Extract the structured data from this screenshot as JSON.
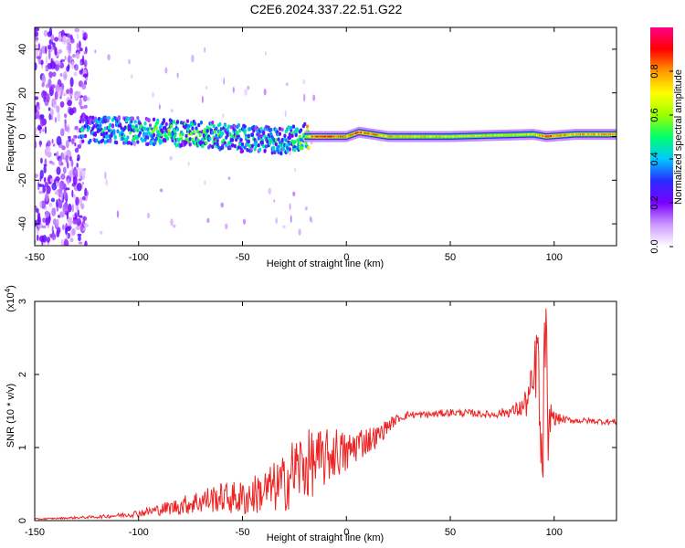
{
  "title": "C2E6.2024.337.22.51.G22",
  "chart_data": [
    {
      "type": "heatmap",
      "xlabel": "Height of straight line (km)",
      "ylabel": "Frequency (Hz)",
      "xlim": [
        -150,
        130
      ],
      "ylim": [
        -50,
        50
      ],
      "x_ticks": [
        -150,
        -100,
        -50,
        0,
        50,
        100
      ],
      "y_ticks": [
        -40,
        -20,
        0,
        20,
        40
      ],
      "colorbar": {
        "label": "Normalized spectral amplitude",
        "range": [
          0.0,
          1.0
        ],
        "ticks": [
          "0.0",
          "0.2",
          "0.4",
          "0.6",
          "0.8"
        ],
        "tick_values": [
          0.0,
          0.2,
          0.4,
          0.6,
          0.8
        ],
        "colors": [
          "#ffffff",
          "#cc99ff",
          "#7a00ff",
          "#2a2aff",
          "#00c8ff",
          "#00ff6a",
          "#9bff00",
          "#ffff00",
          "#ff9900",
          "#ff0000",
          "#ff0088"
        ]
      },
      "ridge": [
        {
          "x": -125,
          "y": 3,
          "amp": 0.35
        },
        {
          "x": -110,
          "y": 3,
          "amp": 0.4
        },
        {
          "x": -90,
          "y": 2,
          "amp": 0.45
        },
        {
          "x": -70,
          "y": 1,
          "amp": 0.45
        },
        {
          "x": -50,
          "y": -1,
          "amp": 0.4
        },
        {
          "x": -30,
          "y": -2,
          "amp": 0.4
        },
        {
          "x": -22,
          "y": 0,
          "amp": 0.5
        },
        {
          "x": -15,
          "y": 0,
          "amp": 0.9
        },
        {
          "x": 0,
          "y": 0,
          "amp": 0.8
        },
        {
          "x": 6,
          "y": 2,
          "amp": 0.85
        },
        {
          "x": 20,
          "y": 0,
          "amp": 0.75
        },
        {
          "x": 50,
          "y": 0,
          "amp": 0.7
        },
        {
          "x": 90,
          "y": 1,
          "amp": 0.7
        },
        {
          "x": 96,
          "y": 0,
          "amp": 0.85
        },
        {
          "x": 110,
          "y": 1,
          "amp": 0.75
        },
        {
          "x": 130,
          "y": 1,
          "amp": 0.8
        }
      ]
    },
    {
      "type": "line",
      "xlabel": "Height of straight line (km)",
      "ylabel": "SNR (10 * v/v)",
      "y_multiplier": "(x10",
      "y_multiplier_exp": "4",
      "y_multiplier_close": ")",
      "xlim": [
        -150,
        130
      ],
      "ylim": [
        0,
        3
      ],
      "x_ticks": [
        -150,
        -100,
        -50,
        0,
        50,
        100
      ],
      "y_ticks": [
        0,
        1,
        2,
        3
      ],
      "series": [
        {
          "color": "#ee2222",
          "x": [
            -150,
            -140,
            -130,
            -120,
            -110,
            -100,
            -90,
            -80,
            -70,
            -60,
            -50,
            -40,
            -30,
            -25,
            -20,
            -15,
            -10,
            -5,
            0,
            5,
            10,
            15,
            20,
            25,
            30,
            40,
            50,
            60,
            70,
            80,
            85,
            90,
            92,
            94,
            95,
            96,
            97,
            98,
            100,
            105,
            110,
            120,
            130
          ],
          "y": [
            0.02,
            0.03,
            0.04,
            0.05,
            0.07,
            0.1,
            0.15,
            0.2,
            0.27,
            0.32,
            0.3,
            0.4,
            0.5,
            0.7,
            0.75,
            0.8,
            0.85,
            0.95,
            0.9,
            1.05,
            1.1,
            1.15,
            1.3,
            1.4,
            1.45,
            1.45,
            1.48,
            1.47,
            1.45,
            1.5,
            1.55,
            1.8,
            2.4,
            0.5,
            1.6,
            3.0,
            0.4,
            1.5,
            1.4,
            1.38,
            1.37,
            1.36,
            1.35
          ],
          "noise": [
            0.01,
            0.01,
            0.015,
            0.02,
            0.03,
            0.05,
            0.08,
            0.12,
            0.18,
            0.2,
            0.25,
            0.3,
            0.4,
            0.5,
            0.5,
            0.45,
            0.4,
            0.35,
            0.3,
            0.25,
            0.2,
            0.15,
            0.1,
            0.06,
            0.05,
            0.05,
            0.05,
            0.05,
            0.05,
            0.08,
            0.15,
            0.4,
            0.6,
            0.7,
            0.8,
            0.8,
            0.6,
            0.3,
            0.1,
            0.05,
            0.04,
            0.04,
            0.04
          ]
        }
      ]
    }
  ]
}
